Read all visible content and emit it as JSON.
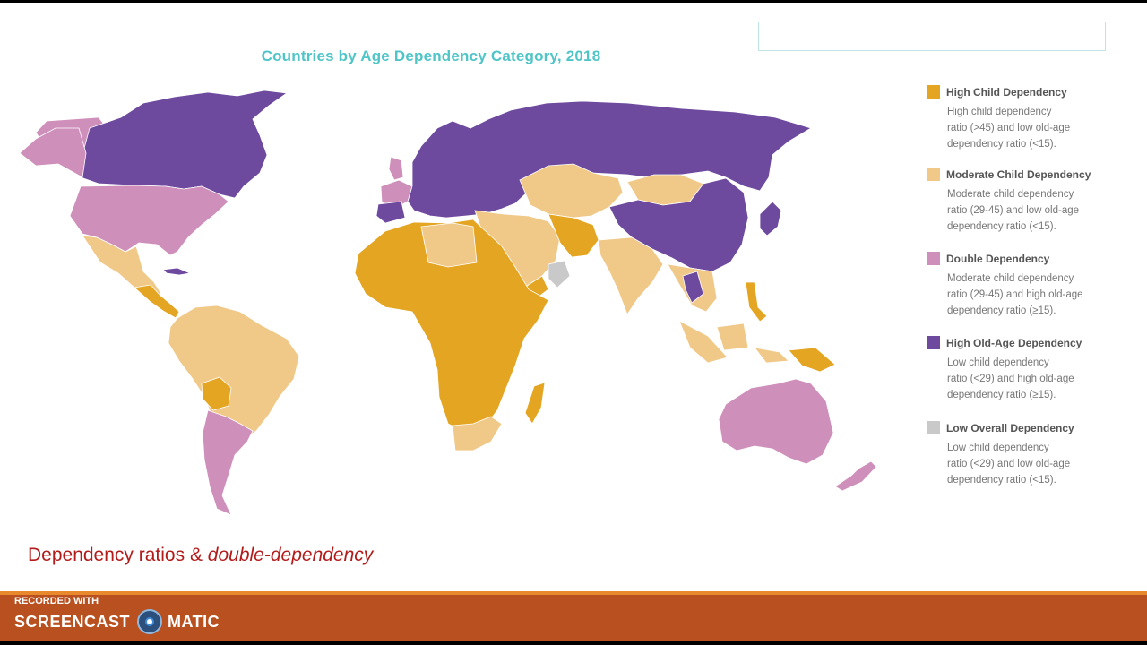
{
  "map": {
    "title": "Countries by Age Dependency Category, 2018",
    "colors": {
      "high_child": "#e4a523",
      "moderate_child": "#f0c989",
      "double": "#cf8fbb",
      "high_old_age": "#6e4a9e",
      "low_overall": "#c9c9c9",
      "ocean": "#ffffff"
    }
  },
  "legend": {
    "items": [
      {
        "title": "High Child Dependency",
        "color": "#e4a523",
        "lines": [
          "High child dependency",
          "ratio (>45) and low old-age",
          "dependency ratio (<15)."
        ]
      },
      {
        "title": "Moderate Child Dependency",
        "color": "#f0c989",
        "lines": [
          "Moderate child dependency",
          "ratio (29-45) and low old-age",
          "dependency ratio (<15)."
        ]
      },
      {
        "title": "Double Dependency",
        "color": "#cf8fbb",
        "lines": [
          "Moderate child dependency",
          "ratio (29-45) and high old-age",
          "dependency ratio (≥15)."
        ]
      },
      {
        "title": "High Old-Age Dependency",
        "color": "#6e4a9e",
        "lines": [
          "Low child dependency",
          "ratio (<29) and high old-age",
          "dependency ratio (≥15)."
        ]
      },
      {
        "title": "Low Overall Dependency",
        "color": "#c9c9c9",
        "lines": [
          "Low child dependency",
          "ratio (<29) and low old-age",
          "dependency ratio (<15)."
        ]
      }
    ]
  },
  "slide": {
    "caption_plain": "Dependency ratios & ",
    "caption_italic": "double-dependency"
  },
  "recorder": {
    "recorded_with": "RECORDED WITH",
    "brand_left": "SCREENCAST",
    "brand_right": "MATIC",
    "logo_icon": "screencast-o-matic-logo-icon"
  }
}
